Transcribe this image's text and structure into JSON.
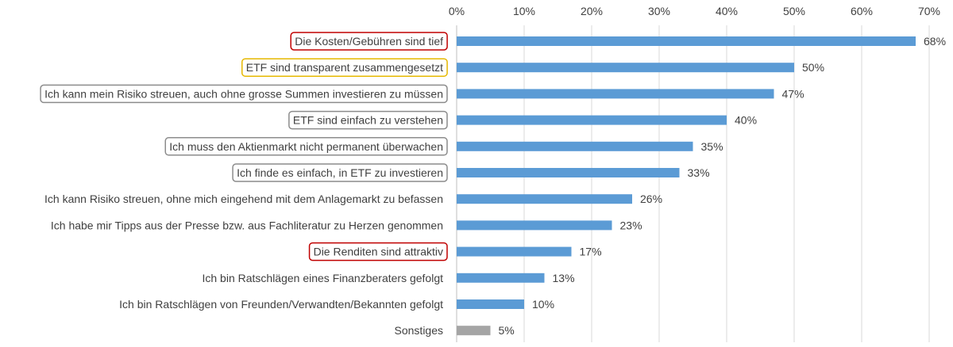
{
  "chart_data": {
    "type": "bar",
    "orientation": "horizontal",
    "title": "",
    "xlabel": "",
    "ylabel": "",
    "xlim": [
      0,
      70
    ],
    "x_ticks": [
      "0%",
      "10%",
      "20%",
      "30%",
      "40%",
      "50%",
      "60%",
      "70%"
    ],
    "tick_values": [
      0,
      10,
      20,
      30,
      40,
      50,
      60,
      70
    ],
    "grid": "vertical",
    "legend": "none",
    "categories": [
      "Die Kosten/Gebühren sind tief",
      "ETF sind transparent zusammengesetzt",
      "Ich kann mein Risiko streuen, auch ohne grosse Summen investieren zu müssen",
      "ETF sind einfach zu verstehen",
      "Ich muss den Aktienmarkt nicht permanent überwachen",
      "Ich finde es einfach, in ETF zu investieren",
      "Ich kann Risiko streuen, ohne mich eingehend mit dem Anlagemarkt zu befassen",
      "Ich habe mir Tipps aus der Presse bzw. aus Fachliteratur zu Herzen genommen",
      "Die Renditen sind attraktiv",
      "Ich bin Ratschlägen eines Finanzberaters gefolgt",
      "Ich bin Ratschlägen von Freunden/Verwandten/Bekannten gefolgt",
      "Sonstiges"
    ],
    "values": [
      68,
      50,
      47,
      40,
      35,
      33,
      26,
      23,
      17,
      13,
      10,
      5
    ],
    "value_labels": [
      "68%",
      "50%",
      "47%",
      "40%",
      "35%",
      "33%",
      "26%",
      "23%",
      "17%",
      "13%",
      "10%",
      "5%"
    ],
    "bar_colors": [
      "#5b9bd5",
      "#5b9bd5",
      "#5b9bd5",
      "#5b9bd5",
      "#5b9bd5",
      "#5b9bd5",
      "#5b9bd5",
      "#5b9bd5",
      "#5b9bd5",
      "#5b9bd5",
      "#5b9bd5",
      "#a5a5a5"
    ],
    "label_highlight": [
      "red",
      "yellow",
      "gray",
      "gray",
      "gray",
      "gray",
      "none",
      "none",
      "red",
      "none",
      "none",
      "none"
    ],
    "highlight_colors": {
      "red": "#c00000",
      "yellow": "#e6b800",
      "gray": "#8c8c8c"
    }
  }
}
